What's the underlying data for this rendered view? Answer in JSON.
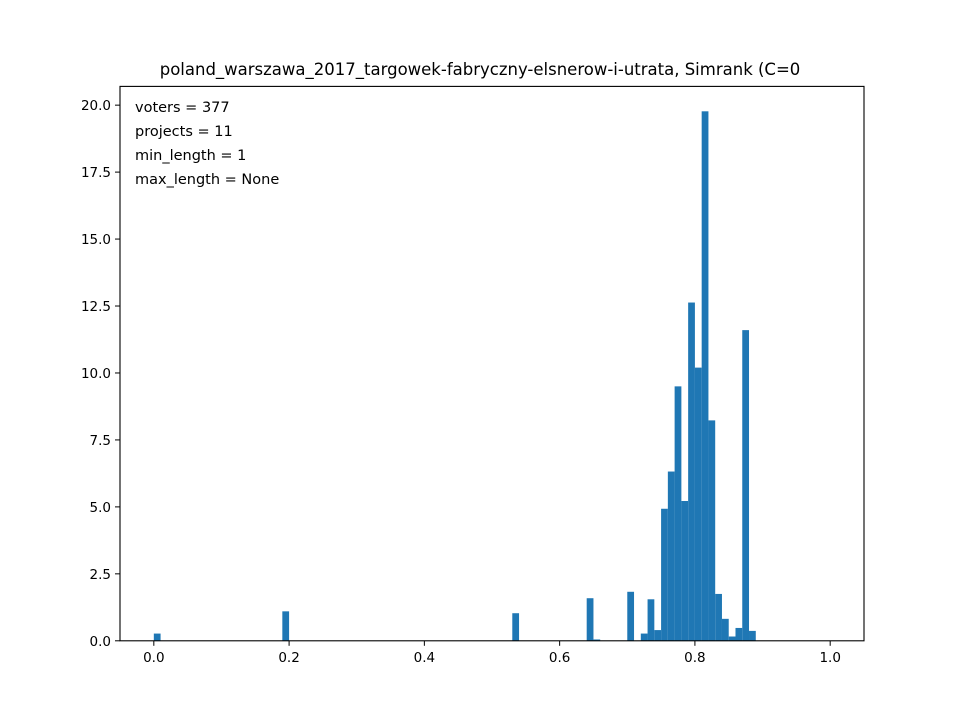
{
  "chart_data": {
    "type": "bar",
    "title": "poland_warszawa_2017_targowek-fabryczny-elsnerow-i-utrata, Simrank (C=0",
    "xlabel": "",
    "ylabel": "",
    "xlim": [
      -0.05,
      1.05
    ],
    "ylim": [
      0,
      20.7
    ],
    "x_ticks": [
      0.0,
      0.2,
      0.4,
      0.6,
      0.8,
      1.0
    ],
    "x_tick_labels": [
      "0.0",
      "0.2",
      "0.4",
      "0.6",
      "0.8",
      "1.0"
    ],
    "y_ticks": [
      0.0,
      2.5,
      5.0,
      7.5,
      10.0,
      12.5,
      15.0,
      17.5,
      20.0
    ],
    "y_tick_labels": [
      "0.0",
      "2.5",
      "5.0",
      "7.5",
      "10.0",
      "12.5",
      "15.0",
      "17.5",
      "20.0"
    ],
    "bin_width": 0.01,
    "bars": [
      {
        "x": 0.0,
        "value": 0.27
      },
      {
        "x": 0.19,
        "value": 1.1
      },
      {
        "x": 0.53,
        "value": 1.03
      },
      {
        "x": 0.64,
        "value": 1.59
      },
      {
        "x": 0.65,
        "value": 0.05
      },
      {
        "x": 0.7,
        "value": 1.83
      },
      {
        "x": 0.72,
        "value": 0.27
      },
      {
        "x": 0.73,
        "value": 1.55
      },
      {
        "x": 0.74,
        "value": 0.4
      },
      {
        "x": 0.75,
        "value": 4.93
      },
      {
        "x": 0.76,
        "value": 6.32
      },
      {
        "x": 0.77,
        "value": 9.5
      },
      {
        "x": 0.78,
        "value": 5.22
      },
      {
        "x": 0.79,
        "value": 12.63
      },
      {
        "x": 0.8,
        "value": 10.2
      },
      {
        "x": 0.81,
        "value": 19.77
      },
      {
        "x": 0.82,
        "value": 8.23
      },
      {
        "x": 0.83,
        "value": 1.75
      },
      {
        "x": 0.84,
        "value": 0.82
      },
      {
        "x": 0.85,
        "value": 0.16
      },
      {
        "x": 0.86,
        "value": 0.48
      },
      {
        "x": 0.87,
        "value": 11.6
      },
      {
        "x": 0.88,
        "value": 0.37
      }
    ],
    "bar_color": "#1f77b4",
    "grid": false,
    "annotations": [
      "voters = 377",
      "projects = 11",
      "min_length = 1",
      "max_length = None"
    ],
    "annotation_placement": "top-left"
  }
}
